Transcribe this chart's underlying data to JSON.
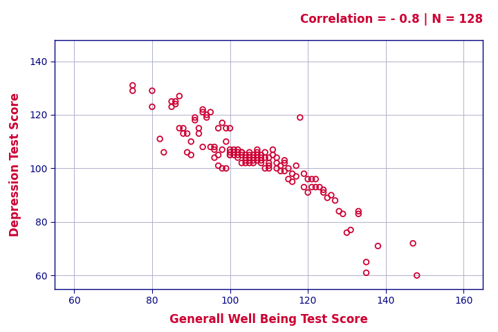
{
  "title_text": "Correlation = - 0.8 | N = 128",
  "title_color": "#CC0033",
  "title_fontsize": 12,
  "xlabel": "Generall Well Being Test Score",
  "ylabel": "Depression Test Score",
  "axis_label_color": "#CC0033",
  "axis_label_fontsize": 12,
  "tick_color": "#000080",
  "tick_fontsize": 10,
  "scatter_color": "#CC0033",
  "scatter_facecolor": "none",
  "scatter_edgewidth": 1.3,
  "scatter_size": 30,
  "xlim": [
    55,
    165
  ],
  "ylim": [
    55,
    148
  ],
  "xticks": [
    60,
    80,
    100,
    120,
    140,
    160
  ],
  "yticks": [
    60,
    80,
    100,
    120,
    140
  ],
  "grid_color": "#b0b0cc",
  "grid_linewidth": 0.7,
  "spine_color": "#000080",
  "background_color": "#ffffff",
  "x_data": [
    75,
    75,
    80,
    80,
    82,
    83,
    85,
    85,
    86,
    86,
    87,
    87,
    88,
    88,
    89,
    89,
    90,
    90,
    91,
    91,
    92,
    92,
    93,
    93,
    93,
    94,
    94,
    95,
    95,
    96,
    96,
    96,
    97,
    97,
    97,
    98,
    98,
    98,
    99,
    99,
    99,
    100,
    100,
    100,
    100,
    100,
    101,
    101,
    101,
    102,
    102,
    102,
    102,
    103,
    103,
    103,
    103,
    104,
    104,
    104,
    104,
    105,
    105,
    105,
    105,
    105,
    106,
    106,
    106,
    106,
    107,
    107,
    107,
    107,
    107,
    108,
    108,
    108,
    108,
    109,
    109,
    109,
    110,
    110,
    110,
    110,
    111,
    111,
    112,
    112,
    112,
    113,
    113,
    114,
    114,
    114,
    115,
    115,
    116,
    116,
    117,
    117,
    118,
    119,
    119,
    120,
    120,
    121,
    121,
    122,
    122,
    123,
    124,
    124,
    125,
    126,
    127,
    128,
    129,
    130,
    131,
    133,
    133,
    135,
    135,
    138,
    147,
    148
  ],
  "y_data": [
    131,
    129,
    123,
    129,
    111,
    106,
    125,
    123,
    125,
    124,
    127,
    115,
    115,
    113,
    113,
    106,
    110,
    105,
    119,
    118,
    115,
    113,
    122,
    121,
    108,
    120,
    119,
    121,
    108,
    108,
    107,
    104,
    115,
    105,
    101,
    117,
    107,
    100,
    115,
    110,
    100,
    115,
    107,
    106,
    105,
    105,
    107,
    106,
    105,
    107,
    106,
    105,
    104,
    106,
    106,
    105,
    102,
    105,
    104,
    103,
    102,
    106,
    105,
    104,
    103,
    102,
    105,
    104,
    103,
    102,
    107,
    106,
    105,
    104,
    103,
    105,
    104,
    103,
    102,
    106,
    104,
    100,
    104,
    102,
    101,
    100,
    107,
    105,
    104,
    102,
    100,
    101,
    99,
    103,
    102,
    99,
    100,
    96,
    98,
    95,
    101,
    97,
    119,
    98,
    93,
    96,
    91,
    96,
    93,
    96,
    93,
    93,
    92,
    91,
    89,
    90,
    88,
    84,
    83,
    76,
    77,
    83,
    84,
    65,
    61,
    71,
    72,
    60
  ]
}
